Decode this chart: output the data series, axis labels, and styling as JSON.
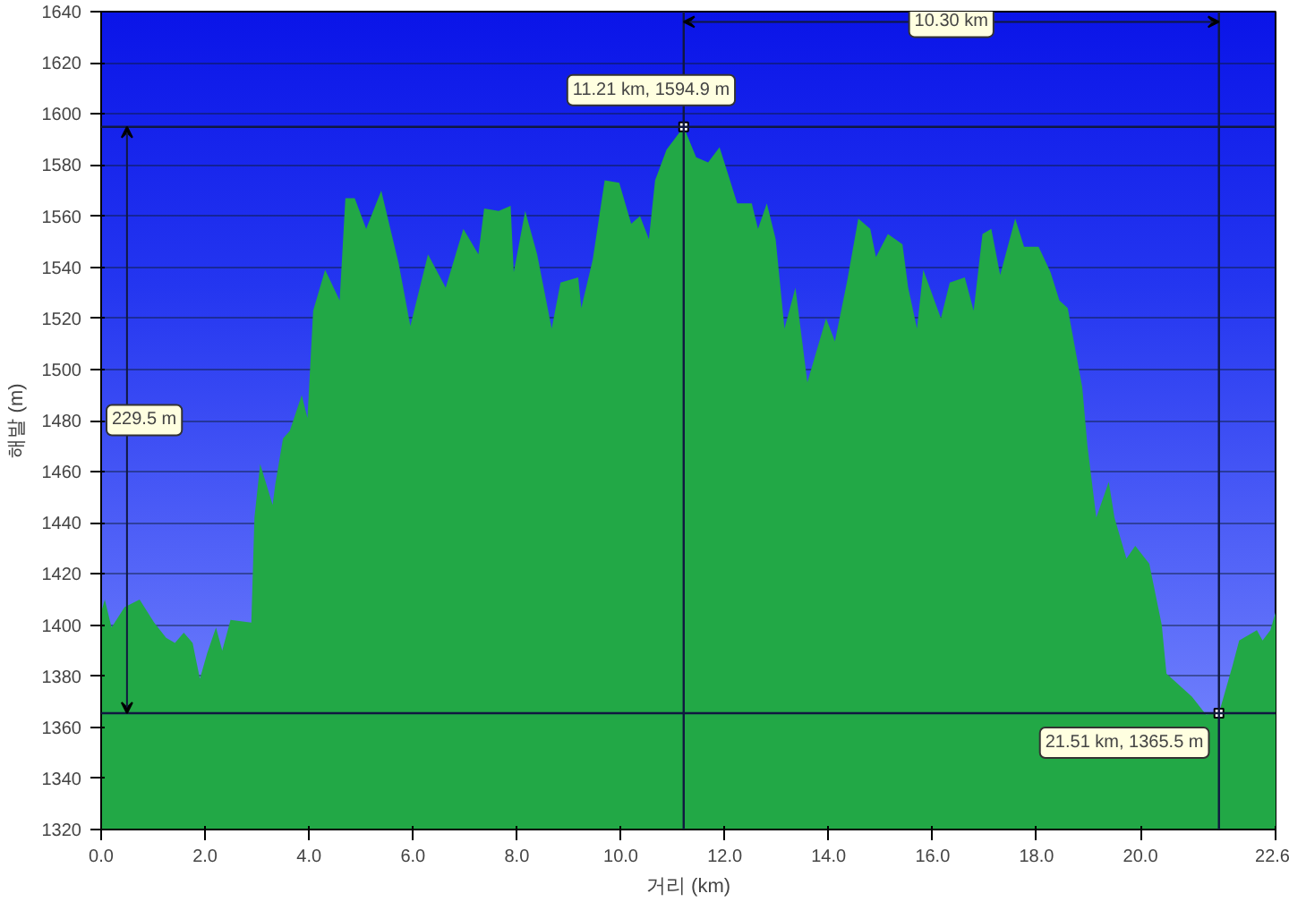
{
  "chart_data": {
    "type": "area",
    "xlabel": "거리 (km)",
    "ylabel": "해발 (m)",
    "xlim": [
      0,
      22.6
    ],
    "ylim": [
      1320,
      1640
    ],
    "xticks": [
      {
        "value": 0,
        "label": "0.0"
      },
      {
        "value": 2,
        "label": "2.0"
      },
      {
        "value": 4,
        "label": "4.0"
      },
      {
        "value": 6,
        "label": "6.0"
      },
      {
        "value": 8,
        "label": "8.0"
      },
      {
        "value": 10,
        "label": "10.0"
      },
      {
        "value": 12,
        "label": "12.0"
      },
      {
        "value": 14,
        "label": "14.0"
      },
      {
        "value": 16,
        "label": "16.0"
      },
      {
        "value": 18,
        "label": "18.0"
      },
      {
        "value": 20,
        "label": "20.0"
      },
      {
        "value": 22.6,
        "label": "22.6"
      }
    ],
    "yticks": [
      1320,
      1340,
      1360,
      1380,
      1400,
      1420,
      1440,
      1460,
      1480,
      1500,
      1520,
      1540,
      1560,
      1580,
      1600,
      1620,
      1640
    ],
    "grid": "y",
    "series": [
      {
        "color": "#22a846",
        "x": [
          0,
          0.07,
          0.2,
          0.45,
          0.74,
          1.02,
          1.25,
          1.42,
          1.59,
          1.76,
          1.9,
          2.04,
          2.21,
          2.33,
          2.49,
          2.89,
          2.95,
          3.06,
          3.3,
          3.35,
          3.5,
          3.63,
          3.86,
          3.97,
          4.08,
          4.31,
          4.59,
          4.7,
          4.88,
          5.1,
          5.39,
          5.73,
          5.95,
          6.29,
          6.63,
          6.97,
          7.26,
          7.37,
          7.65,
          7.88,
          7.94,
          8.16,
          8.39,
          8.67,
          8.84,
          9.18,
          9.24,
          9.46,
          9.69,
          9.97,
          10.2,
          10.37,
          10.54,
          10.66,
          10.88,
          11.21,
          11.45,
          11.68,
          11.9,
          12.07,
          12.24,
          12.52,
          12.64,
          12.81,
          12.98,
          13.15,
          13.36,
          13.59,
          13.72,
          13.95,
          14.12,
          14.35,
          14.57,
          14.8,
          14.91,
          15.14,
          15.42,
          15.53,
          15.7,
          15.82,
          16.16,
          16.33,
          16.62,
          16.79,
          16.96,
          17.13,
          17.3,
          17.59,
          17.76,
          18.04,
          18.27,
          18.44,
          18.6,
          18.88,
          18.98,
          19.15,
          19.39,
          19.5,
          19.73,
          19.9,
          20.17,
          20.41,
          20.5,
          20.99,
          21.26,
          21.51,
          21.77,
          21.9,
          22.24,
          22.35,
          22.5,
          22.6
        ],
        "values": [
          1405,
          1410,
          1399,
          1407,
          1410,
          1401,
          1395,
          1393,
          1397,
          1393,
          1379,
          1389,
          1399,
          1390,
          1402,
          1401,
          1442,
          1463,
          1447,
          1455,
          1473,
          1476,
          1490,
          1481,
          1523,
          1539,
          1527,
          1567,
          1567,
          1555,
          1570,
          1541,
          1517,
          1545,
          1532,
          1555,
          1545,
          1563,
          1562,
          1564,
          1538,
          1562,
          1545,
          1516,
          1534,
          1536,
          1524,
          1543,
          1574,
          1573,
          1557,
          1560,
          1551,
          1574,
          1586,
          1594.9,
          1583,
          1581,
          1587,
          1576,
          1565,
          1565,
          1555,
          1565,
          1551,
          1516,
          1532,
          1495,
          1504,
          1520,
          1511,
          1534,
          1559,
          1555,
          1544,
          1553,
          1549,
          1532,
          1516,
          1539,
          1520,
          1534,
          1536,
          1523,
          1553,
          1555,
          1537,
          1559,
          1548,
          1548,
          1538,
          1527,
          1524,
          1493,
          1470,
          1442,
          1456,
          1442,
          1426,
          1431,
          1424,
          1400,
          1381,
          1372,
          1365,
          1365.5,
          1384,
          1394,
          1398,
          1394,
          1398,
          1405
        ]
      }
    ],
    "ref_lines": [
      {
        "axis": "y",
        "value": 1594.9,
        "color": "#101840"
      },
      {
        "axis": "y",
        "value": 1365.5,
        "color": "#101840"
      },
      {
        "axis": "x",
        "value": 11.21,
        "color": "#101840"
      },
      {
        "axis": "x",
        "value": 21.51,
        "color": "#101840"
      }
    ],
    "annotations": [
      {
        "text": "11.21 km, 1594.9 m",
        "x": 11.21,
        "y": 1594.9
      },
      {
        "text": "21.51 km, 1365.5 m",
        "x": 21.51,
        "y": 1365.5
      },
      "229.5 m",
      "10.30 km"
    ]
  }
}
